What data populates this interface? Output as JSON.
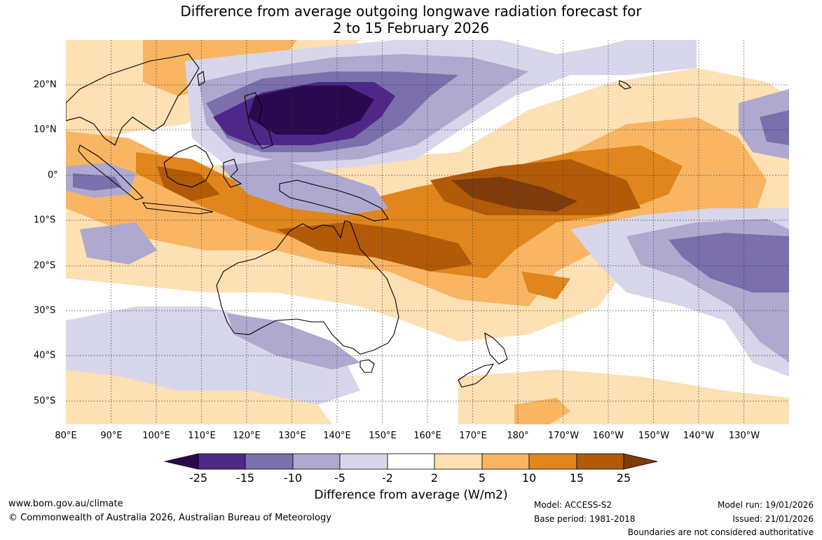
{
  "title_line1": "Difference from average outgoing longwave radiation forecast for",
  "title_line2": "2 to 15 February 2026",
  "lon_labels": [
    "80°E",
    "90°E",
    "100°E",
    "110°E",
    "120°E",
    "130°E",
    "140°E",
    "150°E",
    "160°E",
    "170°E",
    "180°",
    "170°W",
    "160°W",
    "150°W",
    "140°W",
    "130°W"
  ],
  "lat_labels": [
    "20°N",
    "10°N",
    "0°",
    "10°S",
    "20°S",
    "30°S",
    "40°S",
    "50°S"
  ],
  "colorbar": {
    "ticks": [
      "-25",
      "-15",
      "-10",
      "-5",
      "-2",
      "2",
      "5",
      "10",
      "15",
      "25"
    ],
    "colors": [
      "#2a0a4f",
      "#4f2788",
      "#7b6fac",
      "#afa9d0",
      "#d7d6ea",
      "#ffffff",
      "#fde0b3",
      "#f9b562",
      "#e0861d",
      "#b15a08",
      "#7e3b0c"
    ],
    "title": "Difference from average (W/m2)"
  },
  "footer": {
    "website": "www.bom.gov.au/climate",
    "copyright": "© Commonwealth of Australia 2026, Australian Bureau of Meteorology",
    "model": "Model: ACCESS-S2",
    "base_period": "Base period: 1981-2018",
    "model_run": "Model run: 19/01/2026",
    "issued": "Issued: 21/01/2026",
    "disclaimer": "Boundaries are not considered authoritative"
  }
}
